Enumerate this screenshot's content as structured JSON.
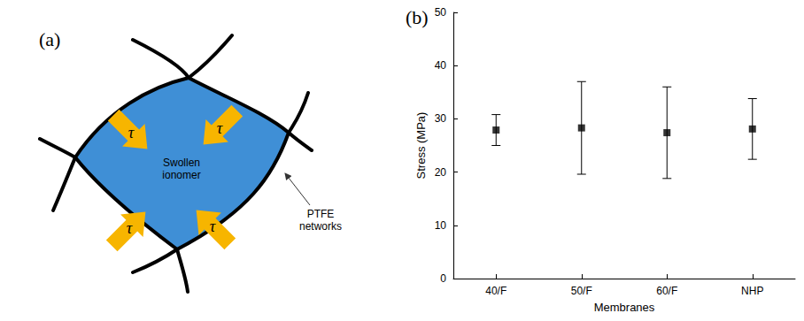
{
  "diagram": {
    "panel_label": "(a)",
    "center_label": "Swollen ionomer",
    "network_label": "PTFE networks",
    "arrow_labels": [
      "τ",
      "τ",
      "τ",
      "τ"
    ]
  },
  "chart_data": {
    "panel_label": "(b)",
    "type": "scatter",
    "categories": [
      "40/F",
      "50/F",
      "60/F",
      "NHP"
    ],
    "values": [
      27.9,
      28.3,
      27.4,
      28.1
    ],
    "errors": [
      2.9,
      8.7,
      8.6,
      5.7
    ],
    "color": "#000000",
    "marker": "square",
    "xlabel": "Membranes",
    "ylabel": "Stress (MPa)",
    "ylim": [
      0,
      50
    ],
    "yticks": [
      0,
      10,
      20,
      30,
      40,
      50
    ],
    "grid": false
  }
}
